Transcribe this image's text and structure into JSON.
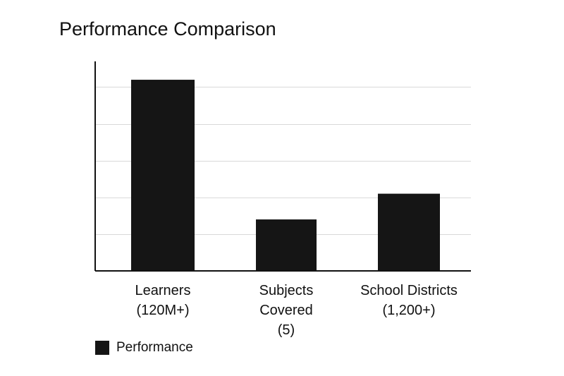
{
  "chart_data": {
    "type": "bar",
    "title": "Performance Comparison",
    "categories": [
      [
        "Learners",
        "(120M+)"
      ],
      [
        "Subjects",
        "Covered",
        "(5)"
      ],
      [
        "School Districts",
        "(1,200+)"
      ]
    ],
    "series": [
      {
        "name": "Performance",
        "values": [
          5.2,
          1.4,
          2.1
        ],
        "color": "#151515"
      }
    ],
    "ylim": [
      0,
      5.7
    ],
    "ygrid_step": 1,
    "grid": true,
    "show_y_ticks": false,
    "legend_position": "bottom-left"
  }
}
